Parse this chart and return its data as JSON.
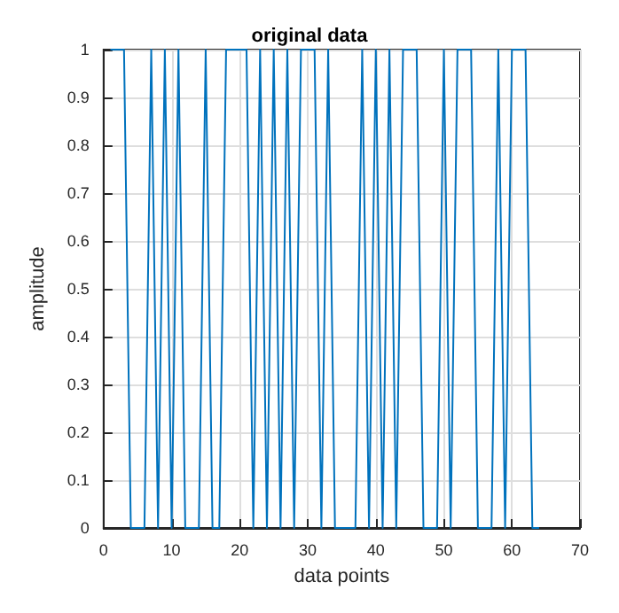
{
  "chart_data": {
    "type": "line",
    "title": "original data",
    "xlabel": "data points",
    "ylabel": "amplitude",
    "x": [
      1,
      2,
      3,
      4,
      5,
      6,
      7,
      8,
      9,
      10,
      11,
      12,
      13,
      14,
      15,
      16,
      17,
      18,
      19,
      20,
      21,
      22,
      23,
      24,
      25,
      26,
      27,
      28,
      29,
      30,
      31,
      32,
      33,
      34,
      35,
      36,
      37,
      38,
      39,
      40,
      41,
      42,
      43,
      44,
      45,
      46,
      47,
      48,
      49,
      50,
      51,
      52,
      53,
      54,
      55,
      56,
      57,
      58,
      59,
      60,
      61,
      62,
      63,
      64
    ],
    "series": [
      {
        "color": "#0072bd",
        "values": [
          1,
          1,
          1,
          0,
          0,
          0,
          1,
          0,
          1,
          0,
          1,
          0,
          0,
          0,
          1,
          0,
          0,
          1,
          1,
          1,
          1,
          0,
          1,
          0,
          1,
          0,
          1,
          0,
          1,
          1,
          1,
          0,
          1,
          0,
          0,
          0,
          0,
          1,
          0,
          1,
          0,
          1,
          0,
          1,
          1,
          1,
          0,
          0,
          0,
          1,
          0,
          1,
          1,
          1,
          0,
          0,
          0,
          1,
          0,
          1,
          1,
          1,
          0,
          0
        ]
      }
    ],
    "xlim": [
      0,
      70
    ],
    "xticks": [
      0,
      10,
      20,
      30,
      40,
      50,
      60,
      70
    ],
    "ylim": [
      0,
      1
    ],
    "yticks": [
      0,
      0.1,
      0.2,
      0.3,
      0.4,
      0.5,
      0.6,
      0.7,
      0.8,
      0.9,
      1
    ],
    "grid": true,
    "marker": "none",
    "line_style": "solid"
  }
}
